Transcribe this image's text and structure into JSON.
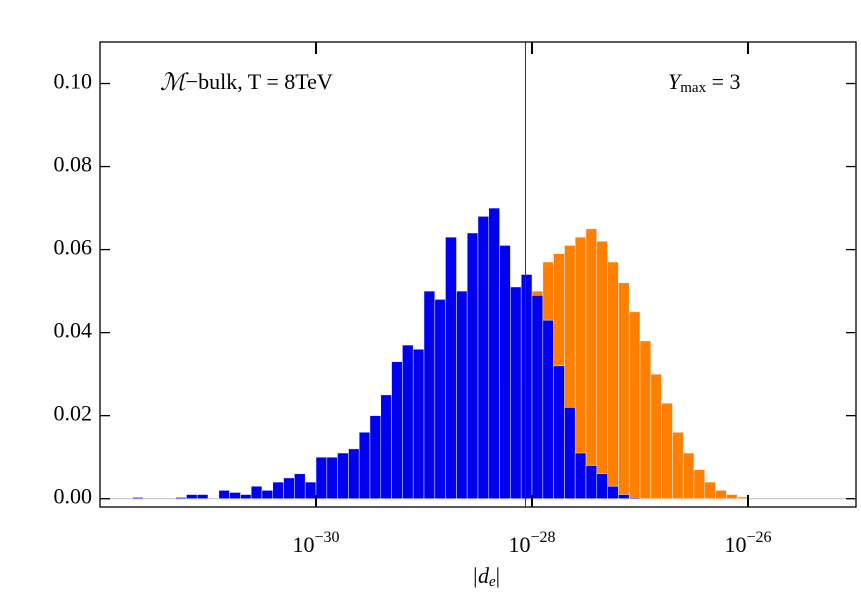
{
  "chart_data": {
    "type": "histogram",
    "x_label": "|de|",
    "annotations": [
      "ℳ−bulk, T = 8TeV",
      "Ymax = 3"
    ],
    "x_log": true,
    "xlim": [
      1e-32,
      1e-25
    ],
    "xticks": [
      {
        "value": 1e-30,
        "label": "10−30"
      },
      {
        "value": 1e-28,
        "label": "10−28"
      },
      {
        "value": 1e-26,
        "label": "10−26"
      }
    ],
    "ylim": [
      -0.002,
      0.11
    ],
    "yticks": [
      {
        "value": 0,
        "label": "0.00"
      },
      {
        "value": 0.02,
        "label": "0.02"
      },
      {
        "value": 0.04,
        "label": "0.04"
      },
      {
        "value": 0.06,
        "label": "0.06"
      },
      {
        "value": 0.08,
        "label": "0.08"
      },
      {
        "value": 0.1,
        "label": "0.10"
      }
    ],
    "baseline": true,
    "vline": 8.7e-29,
    "bins": [
      2e-32,
      2.51e-32,
      3.16e-32,
      3.98e-32,
      5.01e-32,
      6.31e-32,
      7.94e-32,
      1e-31,
      1.26e-31,
      1.58e-31,
      2e-31,
      2.51e-31,
      3.16e-31,
      3.98e-31,
      5.01e-31,
      6.31e-31,
      7.94e-31,
      1e-30,
      1.26e-30,
      1.58e-30,
      2e-30,
      2.51e-30,
      3.16e-30,
      3.98e-30,
      5.01e-30,
      6.31e-30,
      7.94e-30,
      1e-29,
      1.26e-29,
      1.58e-29,
      2e-29,
      2.51e-29,
      3.16e-29,
      3.98e-29,
      5.01e-29,
      6.31e-29,
      7.94e-29,
      1e-28,
      1.26e-28,
      1.58e-28,
      2e-28,
      2.51e-28,
      3.16e-28,
      3.98e-28,
      5.01e-28,
      6.31e-28,
      7.94e-28,
      1e-27,
      1.26e-27,
      1.58e-27,
      2e-27,
      2.51e-27,
      3.16e-27,
      3.98e-27,
      5.01e-27,
      6.31e-27,
      7.94e-27,
      1e-26
    ],
    "series": [
      {
        "color": "#0000ee",
        "values": [
          0.0003,
          0,
          0,
          0,
          0.0003,
          0.001,
          0.001,
          0,
          0.002,
          0.0015,
          0.001,
          0.003,
          0.002,
          0.004,
          0.005,
          0.006,
          0.004,
          0.01,
          0.01,
          0.011,
          0.012,
          0.016,
          0.02,
          0.025,
          0.033,
          0.037,
          0.036,
          0.05,
          0.048,
          0.063,
          0.05,
          0.064,
          0.068,
          0.07,
          0.061,
          0.051,
          0.054,
          0.049,
          0.043,
          0.032,
          0.022,
          0.011,
          0.008,
          0.006,
          0.003,
          0.001,
          0.0003,
          0,
          0,
          0,
          0,
          0,
          0,
          0,
          0,
          0,
          0
        ]
      },
      {
        "color": "#ff8000",
        "values": [
          0,
          0,
          0,
          0,
          0,
          0,
          0,
          0,
          0,
          0,
          0,
          0,
          0,
          0,
          0,
          0,
          0,
          0,
          0,
          0,
          0,
          0,
          0,
          0,
          0,
          0,
          0,
          0,
          0.001,
          0.002,
          0.004,
          0.006,
          0.01,
          0.015,
          0.022,
          0.03,
          0.04,
          0.05,
          0.057,
          0.059,
          0.061,
          0.063,
          0.065,
          0.062,
          0.057,
          0.052,
          0.045,
          0.038,
          0.03,
          0.023,
          0.016,
          0.011,
          0.007,
          0.004,
          0.002,
          0.001,
          0.0004
        ]
      }
    ]
  }
}
